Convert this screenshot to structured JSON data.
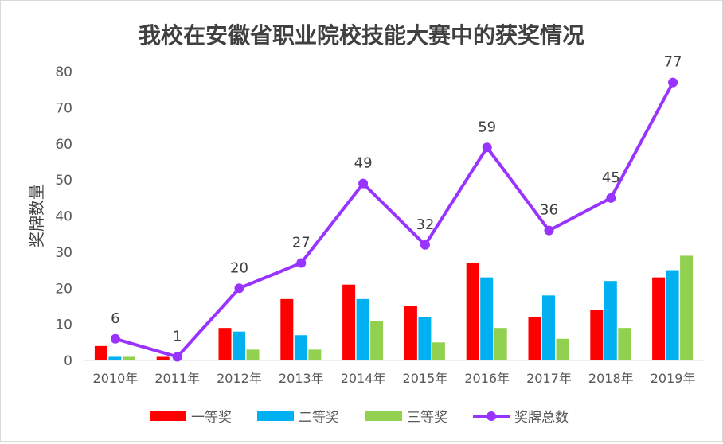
{
  "chart_data": {
    "type": "bar",
    "title": "我校在安徽省职业院校技能大赛中的获奖情况",
    "xlabel": "",
    "ylabel": "奖牌数量",
    "ylim": [
      0,
      80
    ],
    "yticks": [
      0,
      10,
      20,
      30,
      40,
      50,
      60,
      70,
      80
    ],
    "grid": false,
    "legend_position": "bottom",
    "categories": [
      "2010年",
      "2011年",
      "2012年",
      "2013年",
      "2014年",
      "2015年",
      "2016年",
      "2017年",
      "2018年",
      "2019年"
    ],
    "series": [
      {
        "name": "一等奖",
        "type": "bar",
        "color": "#ff0000",
        "values": [
          4,
          1,
          9,
          17,
          21,
          15,
          27,
          12,
          14,
          23
        ]
      },
      {
        "name": "二等奖",
        "type": "bar",
        "color": "#00b0f0",
        "values": [
          1,
          0,
          8,
          7,
          17,
          12,
          23,
          18,
          22,
          25
        ]
      },
      {
        "name": "三等奖",
        "type": "bar",
        "color": "#92d050",
        "values": [
          1,
          0,
          3,
          3,
          11,
          5,
          9,
          6,
          9,
          29
        ]
      },
      {
        "name": "奖牌总数",
        "type": "line",
        "color": "#9933ff",
        "values": [
          6,
          1,
          20,
          27,
          49,
          32,
          59,
          36,
          45,
          77
        ],
        "data_labels": true
      }
    ]
  }
}
